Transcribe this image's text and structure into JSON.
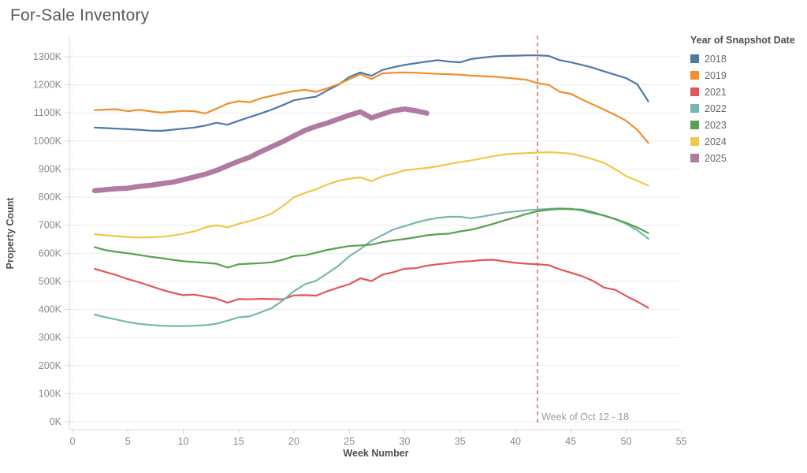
{
  "title": "For-Sale Inventory",
  "legend": {
    "title": "Year of Snapshot Date",
    "items": [
      "2018",
      "2019",
      "2021",
      "2022",
      "2023",
      "2024",
      "2025"
    ]
  },
  "chart_data": {
    "type": "line",
    "title": "For-Sale Inventory",
    "xlabel": "Week Number",
    "ylabel": "Property Count",
    "x_ticks": [
      0,
      5,
      10,
      15,
      20,
      25,
      30,
      35,
      40,
      45,
      50,
      55
    ],
    "y_ticks": [
      "0K",
      "100K",
      "200K",
      "300K",
      "400K",
      "500K",
      "600K",
      "700K",
      "800K",
      "900K",
      "1000K",
      "1100K",
      "1200K",
      "1300K"
    ],
    "y_tick_values": [
      0,
      100,
      200,
      300,
      400,
      500,
      600,
      700,
      800,
      900,
      1000,
      1100,
      1200,
      1300
    ],
    "xlim": [
      0,
      57
    ],
    "ylim": [
      0,
      1375
    ],
    "units": "property count in thousands (K)",
    "grid": "horizontal",
    "legend_position": "right",
    "week_start": 2,
    "reference_line": {
      "label": "Week of Oct 12 - 18",
      "week": 42,
      "color": "#e0726e",
      "style": "dashed"
    },
    "series": [
      {
        "name": "2018",
        "color": "#4e79a7",
        "width": 2.2,
        "values": [
          1048,
          1046,
          1044,
          1042,
          1040,
          1037,
          1036,
          1040,
          1044,
          1048,
          1055,
          1065,
          1058,
          1072,
          1085,
          1098,
          1112,
          1128,
          1145,
          1152,
          1158,
          1180,
          1200,
          1228,
          1244,
          1232,
          1253,
          1263,
          1271,
          1277,
          1283,
          1288,
          1283,
          1280,
          1292,
          1297,
          1301,
          1303,
          1304,
          1305,
          1305,
          1303,
          1288,
          1280,
          1271,
          1261,
          1248,
          1236,
          1224,
          1202,
          1141
        ]
      },
      {
        "name": "2019",
        "color": "#f28e2b",
        "width": 2.2,
        "values": [
          1110,
          1112,
          1113,
          1106,
          1111,
          1106,
          1101,
          1104,
          1107,
          1106,
          1098,
          1115,
          1133,
          1142,
          1138,
          1152,
          1161,
          1170,
          1178,
          1182,
          1175,
          1188,
          1202,
          1220,
          1238,
          1221,
          1241,
          1243,
          1244,
          1243,
          1241,
          1239,
          1238,
          1236,
          1233,
          1231,
          1229,
          1226,
          1222,
          1218,
          1206,
          1200,
          1175,
          1168,
          1148,
          1130,
          1112,
          1093,
          1072,
          1040,
          993
        ]
      },
      {
        "name": "2021",
        "color": "#e15759",
        "width": 2.2,
        "values": [
          545,
          533,
          522,
          508,
          497,
          484,
          471,
          460,
          451,
          453,
          446,
          439,
          424,
          437,
          436,
          438,
          437,
          436,
          450,
          451,
          449,
          465,
          478,
          490,
          511,
          501,
          524,
          533,
          545,
          547,
          556,
          561,
          565,
          570,
          572,
          576,
          577,
          571,
          566,
          563,
          561,
          558,
          543,
          531,
          519,
          502,
          478,
          470,
          448,
          428,
          406
        ]
      },
      {
        "name": "2022",
        "color": "#76b7b2",
        "width": 2.2,
        "values": [
          382,
          372,
          364,
          355,
          349,
          345,
          342,
          341,
          341,
          342,
          344,
          349,
          360,
          372,
          375,
          390,
          405,
          432,
          465,
          490,
          502,
          528,
          555,
          590,
          615,
          645,
          665,
          685,
          697,
          709,
          719,
          726,
          730,
          730,
          725,
          731,
          738,
          745,
          749,
          753,
          756,
          758,
          760,
          759,
          752,
          742,
          735,
          723,
          705,
          682,
          652
        ]
      },
      {
        "name": "2023",
        "color": "#59a14f",
        "width": 2.2,
        "values": [
          622,
          611,
          605,
          600,
          594,
          588,
          583,
          577,
          572,
          569,
          566,
          563,
          549,
          561,
          563,
          565,
          568,
          577,
          590,
          593,
          602,
          612,
          619,
          626,
          628,
          631,
          640,
          646,
          651,
          657,
          664,
          668,
          670,
          678,
          684,
          694,
          705,
          717,
          728,
          740,
          750,
          755,
          758,
          757,
          756,
          746,
          734,
          722,
          708,
          692,
          672
        ]
      },
      {
        "name": "2024",
        "color": "#edc948",
        "width": 2.2,
        "values": [
          668,
          664,
          661,
          658,
          656,
          657,
          659,
          663,
          670,
          678,
          692,
          700,
          692,
          705,
          715,
          727,
          742,
          768,
          800,
          815,
          828,
          845,
          858,
          866,
          870,
          857,
          874,
          884,
          895,
          900,
          904,
          910,
          918,
          925,
          931,
          938,
          946,
          952,
          955,
          957,
          959,
          960,
          958,
          955,
          946,
          935,
          922,
          900,
          875,
          858,
          841
        ]
      },
      {
        "name": "2025",
        "color": "#b07aa1",
        "width": 6.5,
        "values": [
          823,
          827,
          830,
          832,
          838,
          842,
          848,
          853,
          862,
          872,
          882,
          895,
          912,
          928,
          942,
          962,
          980,
          998,
          1018,
          1038,
          1052,
          1064,
          1078,
          1092,
          1104,
          1082,
          1096,
          1108,
          1114,
          1108,
          1099
        ]
      }
    ]
  }
}
